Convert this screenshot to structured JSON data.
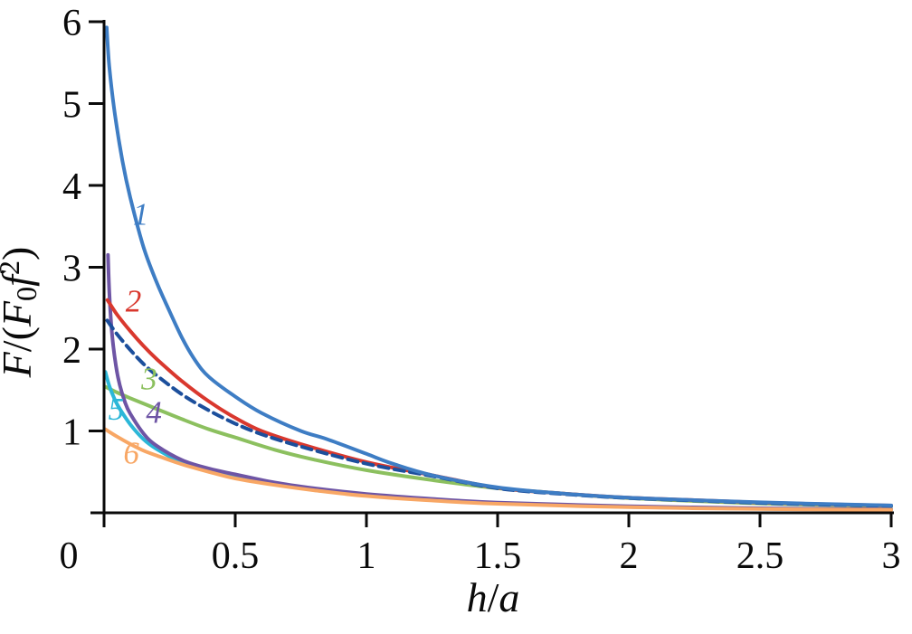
{
  "figure": {
    "background": "#ffffff",
    "axis_color": "#0a0a0a"
  },
  "chart_data": {
    "type": "line",
    "title": "",
    "xlabel": "h/a",
    "ylabel": "F/(F₀f²)",
    "xlabel_parts": [
      {
        "t": "h",
        "i": true
      },
      {
        "t": "/",
        "i": false
      },
      {
        "t": "a",
        "i": true
      }
    ],
    "ylabel_parts": [
      {
        "t": "F",
        "i": true
      },
      {
        "t": "/(",
        "i": false
      },
      {
        "t": "F",
        "i": true
      },
      {
        "t": "0",
        "i": false,
        "shift": "sub"
      },
      {
        "t": "f",
        "i": true
      },
      {
        "t": "2",
        "i": false,
        "shift": "sup"
      },
      {
        "t": ")",
        "i": false
      }
    ],
    "xlim": [
      0,
      3
    ],
    "ylim": [
      0,
      6
    ],
    "grid": false,
    "legend_position": "inline-curve-numbers",
    "x_ticks": [
      {
        "v": 0,
        "label": "0"
      },
      {
        "v": 0.5,
        "label": "0.5"
      },
      {
        "v": 1,
        "label": "1"
      },
      {
        "v": 1.5,
        "label": "1.5"
      },
      {
        "v": 2,
        "label": "2"
      },
      {
        "v": 2.5,
        "label": "2.5"
      },
      {
        "v": 3,
        "label": "3"
      }
    ],
    "y_ticks": [
      {
        "v": 1,
        "label": "1"
      },
      {
        "v": 2,
        "label": "2"
      },
      {
        "v": 3,
        "label": "3"
      },
      {
        "v": 4,
        "label": "4"
      },
      {
        "v": 5,
        "label": "5"
      },
      {
        "v": 6,
        "label": "6"
      }
    ],
    "series": [
      {
        "name": "3",
        "color": "#8cc05f",
        "style": "solid",
        "label_pos": {
          "x": 0.172,
          "y": 1.51
        },
        "points": [
          [
            0.005,
            1.54
          ],
          [
            0.05,
            1.47
          ],
          [
            0.1,
            1.4
          ],
          [
            0.2,
            1.27
          ],
          [
            0.3,
            1.14
          ],
          [
            0.4,
            1.02
          ],
          [
            0.5,
            0.92
          ],
          [
            0.65,
            0.77
          ],
          [
            0.8,
            0.65
          ],
          [
            1.0,
            0.52
          ],
          [
            1.25,
            0.4
          ],
          [
            1.5,
            0.3
          ],
          [
            1.75,
            0.235
          ],
          [
            2.0,
            0.18
          ],
          [
            2.5,
            0.115
          ],
          [
            3.0,
            0.08
          ]
        ]
      },
      {
        "name": "5",
        "color": "#2cb7d8",
        "style": "solid",
        "label_pos": {
          "x": 0.046,
          "y": 1.14
        },
        "points": [
          [
            0.005,
            1.72
          ],
          [
            0.02,
            1.55
          ],
          [
            0.04,
            1.39
          ],
          [
            0.06,
            1.27
          ],
          [
            0.1,
            1.08
          ],
          [
            0.15,
            0.9
          ],
          [
            0.2,
            0.78
          ],
          [
            0.3,
            0.61
          ],
          [
            0.4,
            0.51
          ],
          [
            0.5,
            0.44
          ],
          [
            0.65,
            0.35
          ],
          [
            0.8,
            0.285
          ],
          [
            1.0,
            0.215
          ],
          [
            1.25,
            0.155
          ],
          [
            1.5,
            0.115
          ],
          [
            2.0,
            0.072
          ],
          [
            2.5,
            0.05
          ],
          [
            3.0,
            0.038
          ]
        ]
      },
      {
        "name": "4",
        "color": "#6e55a5",
        "style": "solid",
        "label_pos": {
          "x": 0.19,
          "y": 1.1
        },
        "points": [
          [
            0.015,
            3.15
          ],
          [
            0.02,
            2.7
          ],
          [
            0.03,
            2.2
          ],
          [
            0.045,
            1.8
          ],
          [
            0.06,
            1.56
          ],
          [
            0.08,
            1.35
          ],
          [
            0.1,
            1.21
          ],
          [
            0.15,
            0.97
          ],
          [
            0.2,
            0.82
          ],
          [
            0.3,
            0.64
          ],
          [
            0.4,
            0.54
          ],
          [
            0.5,
            0.47
          ],
          [
            0.65,
            0.37
          ],
          [
            0.8,
            0.3
          ],
          [
            1.0,
            0.23
          ],
          [
            1.25,
            0.17
          ],
          [
            1.5,
            0.125
          ],
          [
            2.0,
            0.08
          ],
          [
            2.5,
            0.055
          ],
          [
            3.0,
            0.042
          ]
        ]
      },
      {
        "name": "6",
        "color": "#f8a765",
        "style": "solid",
        "label_pos": {
          "x": 0.104,
          "y": 0.6
        },
        "points": [
          [
            0.005,
            1.02
          ],
          [
            0.05,
            0.93
          ],
          [
            0.1,
            0.84
          ],
          [
            0.15,
            0.76
          ],
          [
            0.2,
            0.7
          ],
          [
            0.3,
            0.59
          ],
          [
            0.4,
            0.5
          ],
          [
            0.5,
            0.42
          ],
          [
            0.65,
            0.34
          ],
          [
            0.8,
            0.275
          ],
          [
            1.0,
            0.205
          ],
          [
            1.25,
            0.15
          ],
          [
            1.5,
            0.11
          ],
          [
            2.0,
            0.068
          ],
          [
            2.5,
            0.046
          ],
          [
            3.0,
            0.035
          ]
        ]
      },
      {
        "name": "2",
        "color": "#d9382e",
        "style": "solid",
        "label_pos": {
          "x": 0.112,
          "y": 2.46
        },
        "points": [
          [
            0.013,
            2.6
          ],
          [
            0.05,
            2.42
          ],
          [
            0.1,
            2.22
          ],
          [
            0.15,
            2.04
          ],
          [
            0.2,
            1.88
          ],
          [
            0.3,
            1.6
          ],
          [
            0.4,
            1.36
          ],
          [
            0.5,
            1.16
          ],
          [
            0.6,
            1.0
          ],
          [
            0.75,
            0.84
          ],
          [
            1.0,
            0.62
          ],
          [
            1.25,
            0.46
          ],
          [
            1.5,
            0.305
          ],
          [
            1.75,
            0.235
          ],
          [
            2.0,
            0.185
          ],
          [
            2.25,
            0.155
          ],
          [
            2.5,
            0.125
          ],
          [
            2.75,
            0.105
          ],
          [
            3.0,
            0.088
          ]
        ]
      },
      {
        "name": "dashed",
        "color": "#1c4f9c",
        "style": "dashed",
        "label_pos": null,
        "points": [
          [
            0.012,
            2.35
          ],
          [
            0.05,
            2.18
          ],
          [
            0.1,
            1.99
          ],
          [
            0.15,
            1.82
          ],
          [
            0.2,
            1.68
          ],
          [
            0.3,
            1.44
          ],
          [
            0.4,
            1.25
          ],
          [
            0.5,
            1.09
          ],
          [
            0.6,
            0.96
          ],
          [
            0.75,
            0.81
          ],
          [
            1.0,
            0.6
          ],
          [
            1.25,
            0.45
          ],
          [
            1.5,
            0.3
          ],
          [
            1.75,
            0.23
          ],
          [
            2.0,
            0.18
          ],
          [
            2.25,
            0.15
          ],
          [
            2.5,
            0.12
          ],
          [
            2.75,
            0.1
          ],
          [
            3.0,
            0.085
          ]
        ]
      },
      {
        "name": "1",
        "color": "#3e7dc4",
        "style": "solid",
        "label_pos": {
          "x": 0.14,
          "y": 3.52
        },
        "points": [
          [
            0.01,
            5.93
          ],
          [
            0.02,
            5.45
          ],
          [
            0.04,
            4.9
          ],
          [
            0.07,
            4.3
          ],
          [
            0.1,
            3.85
          ],
          [
            0.15,
            3.25
          ],
          [
            0.2,
            2.82
          ],
          [
            0.25,
            2.46
          ],
          [
            0.3,
            2.12
          ],
          [
            0.35,
            1.85
          ],
          [
            0.4,
            1.66
          ],
          [
            0.5,
            1.42
          ],
          [
            0.6,
            1.22
          ],
          [
            0.75,
            1.0
          ],
          [
            0.85,
            0.9
          ],
          [
            1.0,
            0.72
          ],
          [
            1.1,
            0.6
          ],
          [
            1.25,
            0.46
          ],
          [
            1.5,
            0.31
          ],
          [
            1.75,
            0.235
          ],
          [
            2.0,
            0.185
          ],
          [
            2.25,
            0.155
          ],
          [
            2.5,
            0.128
          ],
          [
            2.75,
            0.107
          ],
          [
            3.0,
            0.09
          ]
        ]
      }
    ]
  }
}
